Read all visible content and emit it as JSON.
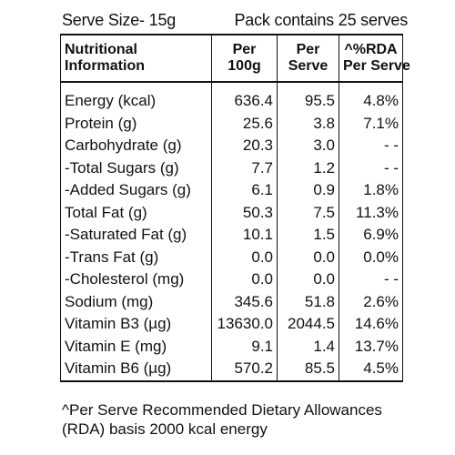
{
  "serve_size": "Serve Size- 15g",
  "pack_contains": "Pack contains 25 serves",
  "table": {
    "headers": {
      "nutrient_line1": "Nutritional",
      "nutrient_line2": "Information",
      "per100_line1": "Per",
      "per100_line2": "100g",
      "perserve_line1": "Per",
      "perserve_line2": "Serve",
      "rda_line1": "^%RDA",
      "rda_line2": "Per Serve"
    },
    "rows": [
      {
        "name": "Energy (kcal)",
        "per100g": "636.4",
        "per_serve": "95.5",
        "rda": "4.8%"
      },
      {
        "name": "Protein (g)",
        "per100g": "25.6",
        "per_serve": "3.8",
        "rda": "7.1%"
      },
      {
        "name": "Carbohydrate (g)",
        "per100g": "20.3",
        "per_serve": "3.0",
        "rda": "- -"
      },
      {
        "name": "-Total Sugars (g)",
        "per100g": "7.7",
        "per_serve": "1.2",
        "rda": "- -"
      },
      {
        "name": "-Added Sugars (g)",
        "per100g": "6.1",
        "per_serve": "0.9",
        "rda": "1.8%"
      },
      {
        "name": "Total Fat (g)",
        "per100g": "50.3",
        "per_serve": "7.5",
        "rda": "11.3%"
      },
      {
        "name": "-Saturated Fat (g)",
        "per100g": "10.1",
        "per_serve": "1.5",
        "rda": "6.9%"
      },
      {
        "name": "-Trans Fat (g)",
        "per100g": "0.0",
        "per_serve": "0.0",
        "rda": "0.0%"
      },
      {
        "name": "-Cholesterol (mg)",
        "per100g": "0.0",
        "per_serve": "0.0",
        "rda": "- -"
      },
      {
        "name": "Sodium (mg)",
        "per100g": "345.6",
        "per_serve": "51.8",
        "rda": "2.6%"
      },
      {
        "name": "Vitamin B3 (µg)",
        "per100g": "13630.0",
        "per_serve": "2044.5",
        "rda": "14.6%"
      },
      {
        "name": "Vitamin E (mg)",
        "per100g": "9.1",
        "per_serve": "1.4",
        "rda": "13.7%"
      },
      {
        "name": "Vitamin B6 (µg)",
        "per100g": "570.2",
        "per_serve": "85.5",
        "rda": "4.5%"
      }
    ]
  },
  "footnote_line1": "^Per Serve Recommended Dietary Allowances",
  "footnote_line2": "(RDA) basis 2000 kcal energy"
}
